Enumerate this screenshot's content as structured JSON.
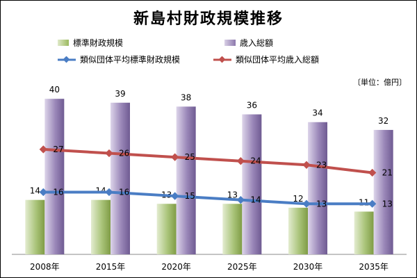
{
  "chart_data": {
    "type": "bar",
    "title": "新島村財政規模推移",
    "unit_note": "〔単位：億円〕",
    "categories": [
      "2008年",
      "2015年",
      "2020年",
      "2025年",
      "2030年",
      "2035年"
    ],
    "bar_series": [
      {
        "name": "標準財政規模",
        "values": [
          14,
          14,
          13,
          13,
          12,
          11
        ],
        "color": "#9cba5f"
      },
      {
        "name": "歳入総額",
        "values": [
          40,
          39,
          38,
          36,
          34,
          32
        ],
        "color": "#8c78ac"
      }
    ],
    "line_series": [
      {
        "name": "類似団体平均標準財政規模",
        "values": [
          16,
          16,
          15,
          14,
          13,
          13
        ],
        "color": "#4a7dc4"
      },
      {
        "name": "類似団体平均歳入総額",
        "values": [
          27,
          26,
          25,
          24,
          23,
          21
        ],
        "color": "#c0504d"
      }
    ],
    "ylim": [
      0,
      47
    ],
    "legend_position": "top",
    "grid": false
  }
}
